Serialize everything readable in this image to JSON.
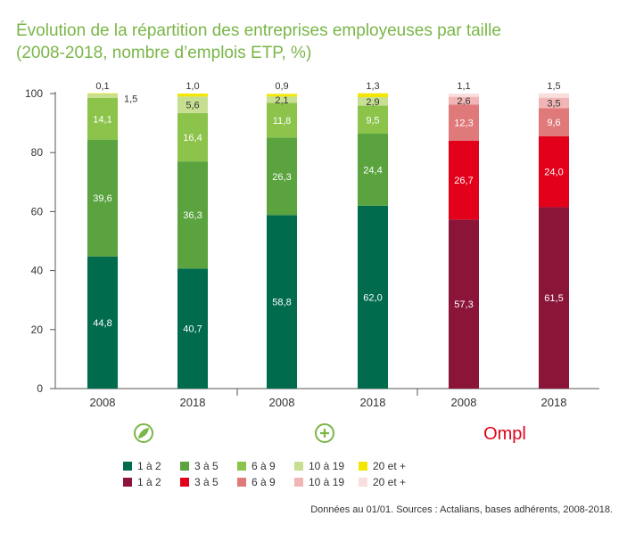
{
  "title": {
    "line1": "Évolution de la répartition des entreprises employeuses par taille",
    "line2": "(2008-2018, nombre d’emplois ETP, %)"
  },
  "source": "Données au 01/01. Sources : Actalians, bases adhérents, 2008-2018.",
  "logos": [
    {
      "group": 0,
      "icon": "green-leaf-circle-icon"
    },
    {
      "group": 1,
      "icon": "green-plus-circle-icon"
    },
    {
      "group": 2,
      "text": "Ompl",
      "color": "#e2001a"
    }
  ],
  "legend": {
    "green": [
      {
        "label": "1 à 2",
        "color": "#006b4d"
      },
      {
        "label": "3 à 5",
        "color": "#5aa33e"
      },
      {
        "label": "6 à 9",
        "color": "#8cc34b"
      },
      {
        "label": "10 à 19",
        "color": "#c6df91"
      },
      {
        "label": "20 et +",
        "color": "#f3e600"
      }
    ],
    "red": [
      {
        "label": "1 à 2",
        "color": "#8a1538"
      },
      {
        "label": "3 à 5",
        "color": "#e2001a"
      },
      {
        "label": "6 à 9",
        "color": "#e07a7a"
      },
      {
        "label": "10 à 19",
        "color": "#f2b5b5"
      },
      {
        "label": "20 et +",
        "color": "#f9dede"
      }
    ]
  },
  "chart_data": {
    "type": "bar",
    "stacked": true,
    "ylim": [
      0,
      100
    ],
    "yticks": [
      0,
      20,
      40,
      60,
      80,
      100
    ],
    "categories": [
      "2008",
      "2018",
      "2008",
      "2018",
      "2008",
      "2018"
    ],
    "groups": [
      0,
      0,
      1,
      1,
      2,
      2
    ],
    "series": [
      {
        "name": "1 à 2",
        "values": [
          44.8,
          40.7,
          58.8,
          62.0,
          57.3,
          61.5
        ],
        "labels": [
          "44,8",
          "40,7",
          "58,8",
          "62,0",
          "57,3",
          "61,5"
        ]
      },
      {
        "name": "3 à 5",
        "values": [
          39.6,
          36.3,
          26.3,
          24.4,
          26.7,
          24.0
        ],
        "labels": [
          "39,6",
          "36,3",
          "26,3",
          "24,4",
          "26,7",
          "24,0"
        ]
      },
      {
        "name": "6 à 9",
        "values": [
          14.1,
          16.4,
          11.8,
          9.5,
          12.3,
          9.6
        ],
        "labels": [
          "14,1",
          "16,4",
          "11,8",
          "9,5",
          "12,3",
          "9,6"
        ]
      },
      {
        "name": "10 à 19",
        "values": [
          1.5,
          5.6,
          2.1,
          2.9,
          2.6,
          3.5
        ],
        "labels": [
          "1,5",
          "5,6",
          "2,1",
          "2,9",
          "2,6",
          "3,5"
        ]
      },
      {
        "name": "20 et +",
        "values": [
          0.1,
          1.0,
          0.9,
          1.3,
          1.1,
          1.5
        ],
        "labels": [
          "0,1",
          "1,0",
          "0,9",
          "1,3",
          "1,1",
          "1,5"
        ]
      }
    ]
  }
}
